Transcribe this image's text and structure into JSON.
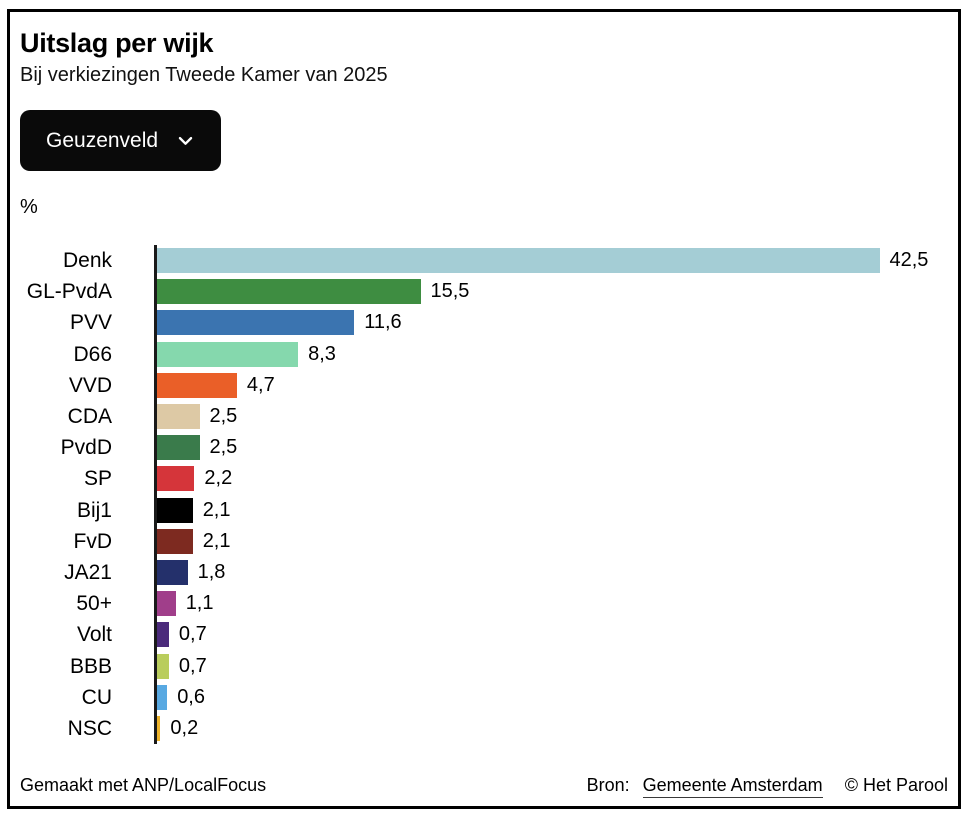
{
  "header": {
    "title": "Uitslag per wijk",
    "subtitle": "Bij verkiezingen Tweede Kamer van 2025"
  },
  "controls": {
    "district_dropdown": {
      "selected": "Geuzenveld",
      "icon": "chevron-down-icon"
    }
  },
  "chart_data": {
    "type": "bar",
    "orientation": "horizontal",
    "title": "Uitslag per wijk",
    "subtitle": "Bij verkiezingen Tweede Kamer van 2025",
    "unit_label": "%",
    "xlabel": "",
    "ylabel": "",
    "xlim": [
      0,
      42.5
    ],
    "grid": false,
    "value_label_position": "end-of-bar",
    "decimal_separator": ",",
    "categories": [
      "Denk",
      "GL-PvdA",
      "PVV",
      "D66",
      "VVD",
      "CDA",
      "PvdD",
      "SP",
      "Bij1",
      "FvD",
      "JA21",
      "50+",
      "Volt",
      "BBB",
      "CU",
      "NSC"
    ],
    "values": [
      42.5,
      15.5,
      11.6,
      8.3,
      4.7,
      2.5,
      2.5,
      2.2,
      2.1,
      2.1,
      1.8,
      1.1,
      0.7,
      0.7,
      0.6,
      0.2
    ],
    "value_labels": [
      "42,5",
      "15,5",
      "11,6",
      "8,3",
      "4,7",
      "2,5",
      "2,5",
      "2,2",
      "2,1",
      "2,1",
      "1,8",
      "1,1",
      "0,7",
      "0,7",
      "0,6",
      "0,2"
    ],
    "bar_colors": [
      "#a4cdd5",
      "#3e8d41",
      "#3b74b0",
      "#85d8ad",
      "#ea5f28",
      "#ddc9a5",
      "#3a7b4b",
      "#d5353a",
      "#000000",
      "#7d2a20",
      "#24306b",
      "#a03e8a",
      "#4b2a7b",
      "#b9cd5c",
      "#58a9e2",
      "#edb32a"
    ],
    "axis_color": "#1a1a1a"
  },
  "footer": {
    "credit": "Gemaakt met ANP/LocalFocus",
    "source_label": "Bron:",
    "source_link": "Gemeente Amsterdam",
    "copyright": "© Het Parool"
  }
}
